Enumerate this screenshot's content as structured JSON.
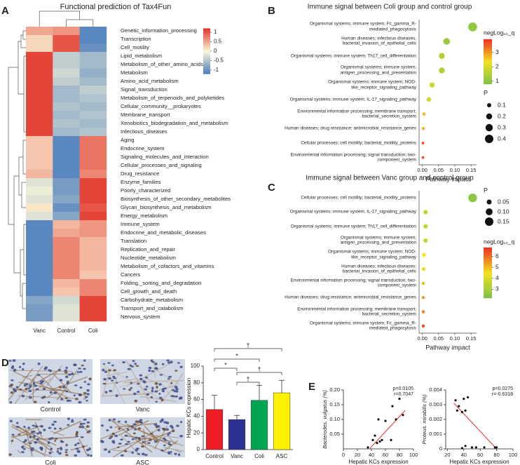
{
  "micrographs": {
    "panel": "D",
    "labels": [
      "Control",
      "Vanc",
      "Coli",
      "ASC"
    ]
  },
  "chart_data": [
    {
      "type": "heatmap",
      "panel": "A",
      "title": "Functional prediction of Tax4Fun",
      "rows": [
        "Genetic_information_processing",
        "Transcription",
        "Cell_motility",
        "Lipid_metabolism",
        "Metabolism_of_other_amino_acids",
        "Metabolism",
        "Amino_acid_metabolism",
        "Signal_transduction",
        "Metabolism_of_terpenoids_and_polyketides",
        "Cellular_community__prokaryotes",
        "Membrane_transport",
        "Xenobiotics_biodegradation_and_metabolism",
        "Infectious_diseases",
        "Aging",
        "Endocrine_system",
        "Signaling_molecules_and_interaction",
        "Cellular_processes_and_signaling",
        "Drug_resistance",
        "Enzyme_families",
        "Poorly_characterized",
        "Biosynthesis_of_other_secondary_metabolites",
        "Glycan_biosynthesis_and_metabolism",
        "Energy_metabolism",
        "Immune_system",
        "Endocrine_and_metabolic_diseases",
        "Translation",
        "Replication_and_repair",
        "Nucleotide_metabolism",
        "Metabolism_of_cofactors_and_vitamins",
        "Cancers",
        "Folding,_sorting_and_degradation",
        "Cell_growth_and_death",
        "Carbohydrate_metabolism",
        "Transport_and_catabolism",
        "Nervous_system"
      ],
      "series": [
        {
          "name": "Vanc",
          "values": [
            0.5,
            0.2,
            0.2,
            1.1,
            1.1,
            1.1,
            1.1,
            1.1,
            1.1,
            1.1,
            1.1,
            1.1,
            1.1,
            0.3,
            0.3,
            0.3,
            0.3,
            0.4,
            -0.2,
            -0.1,
            -0.2,
            0.1,
            -0.2,
            -1.1,
            -1.1,
            -1.1,
            -1.1,
            -1.1,
            -1.1,
            -1.1,
            -1.1,
            -1.1,
            -0.8,
            -0.9,
            -0.9
          ]
        },
        {
          "name": "Control",
          "values": [
            0.6,
            1.0,
            1.0,
            -0.4,
            -0.4,
            -0.3,
            -0.4,
            -0.6,
            -0.6,
            -0.5,
            -0.6,
            -0.5,
            -0.6,
            -1.1,
            -1.1,
            -1.1,
            -1.1,
            -1.1,
            -0.9,
            -0.9,
            -0.8,
            -1.0,
            -0.8,
            0.4,
            0.5,
            0.7,
            0.7,
            0.7,
            0.7,
            0.7,
            0.4,
            0.3,
            -0.3,
            -0.2,
            -0.2
          ]
        },
        {
          "name": "Coli",
          "values": [
            -1.1,
            -1.1,
            -1.0,
            -0.6,
            -0.6,
            -0.7,
            -0.6,
            -0.4,
            -0.5,
            -0.6,
            -0.5,
            -0.6,
            -0.5,
            0.8,
            0.8,
            0.8,
            0.8,
            0.7,
            1.1,
            1.1,
            1.1,
            1.0,
            1.1,
            0.6,
            0.6,
            0.4,
            0.4,
            0.4,
            0.4,
            0.3,
            0.7,
            0.7,
            1.1,
            1.1,
            1.1
          ]
        }
      ],
      "zlim": [
        -1.2,
        1.2
      ],
      "colorbar_ticks": [
        1,
        0.5,
        0,
        -0.5,
        -1
      ],
      "colors": [
        "#4a7dbd",
        "#fbf7d8",
        "#e3342b"
      ]
    },
    {
      "type": "dotplot",
      "panel": "B",
      "title": "Immune signal between Coli group and control group",
      "categories": [
        "Organismal systems; immune system; Fc_gamma_R-mediated_phagocytosis",
        "Human diseases; infectious diseases; bacterial_invasion_of_epithelial_cells",
        "Organismal systems; immune system; Th17_cell_differentiation",
        "Organismal systems; immune system; antigen_processing_and_presentation",
        "Organismal systems; immune system; NOD-like_receptor_signaling_pathway",
        "Organismal systems; immune system; IL-17_signaling_pathway",
        "Environmental information processing; membrane transport; bacterial_secretion_system",
        "Human diseases; drug resistance; antimicrobial_resistance_genes",
        "Cellular processes; cell motility; bacterial_motility_proteins",
        "Environmental information processing; signal transduction; two-component_system"
      ],
      "values": [
        0.155,
        0.075,
        0.06,
        0.06,
        0.03,
        0.02,
        0.005,
        0.003,
        0.002,
        0.002
      ],
      "size_values": [
        0.45,
        0.25,
        0.2,
        0.2,
        0.15,
        0.12,
        0.06,
        0.05,
        0.04,
        0.04
      ],
      "color_values": [
        1.1,
        1.2,
        1.5,
        1.5,
        1.8,
        1.9,
        2.7,
        2.8,
        3.6,
        3.7
      ],
      "xlim": [
        -0.01,
        0.167
      ],
      "xticks": [
        {
          "value": 0,
          "label": "0.00"
        },
        0.05,
        {
          "value": 0.1,
          "label": "0.10"
        },
        0.15
      ],
      "xlabel": "Pathway impact",
      "size_legend": {
        "title": "P",
        "values": [
          0.1,
          0.2,
          0.3,
          0.4
        ]
      },
      "color_legend": {
        "title": "negLog₁₀_q",
        "ticks": [
          1,
          2,
          3
        ],
        "range": [
          0.8,
          3.9
        ],
        "colors": [
          "#7dc24a",
          "#f2e21f",
          "#ee3024"
        ]
      }
    },
    {
      "type": "dotplot",
      "panel": "C",
      "title": "Immune signal between Vanc group and control group",
      "categories": [
        "Cellular processes; cell motility; bacterial_motility_proteins",
        "Organismal systems; immune system; IL-17_signaling_pathway",
        "Organismal systems; immune system; Th17_cell_differentiation",
        "Organismal systems; immune system; antigen_processing_and_presentation",
        "Organismal systems; immune system; NOD-like_receptor_signaling_pathway",
        "Human diseases; infectious diseases; bacterial_invasion_of_epithelial_cells",
        "Environmental information processing; signal transduction; two-component_system",
        "Human diseases; drug resistance; antimicrobial_resistance_genes",
        "Environmental information processing; membrane transport; bacterial_secretion_system",
        "Organismal systems; immune system; Fc_gamma_R-mediated_phagocytosis"
      ],
      "values": [
        0.155,
        0.01,
        0.01,
        0.01,
        0.005,
        0.004,
        0.003,
        0.003,
        0.003,
        0.003
      ],
      "size_values": [
        0.16,
        0.04,
        0.04,
        0.04,
        0.03,
        0.03,
        0.02,
        0.02,
        0.02,
        0.02
      ],
      "color_values": [
        2.5,
        3.6,
        3.6,
        3.6,
        4.5,
        4.6,
        5.0,
        5.5,
        5.8,
        6.4
      ],
      "xlim": [
        -0.01,
        0.167
      ],
      "xticks": [
        {
          "value": 0,
          "label": "0.00"
        },
        0.05,
        {
          "value": 0.1,
          "label": "0.10"
        },
        0.15
      ],
      "xlabel": "Pathway impact",
      "size_legend": {
        "title": "P",
        "values": [
          0.05,
          {
            "value": 0.1,
            "label": "0.10"
          },
          0.15
        ]
      },
      "color_legend": {
        "title": "negLog₁₀_q",
        "ticks": [
          3,
          4,
          5,
          6
        ],
        "range": [
          2.2,
          6.8
        ],
        "colors": [
          "#7dc24a",
          "#f2e21f",
          "#ee3024"
        ]
      }
    },
    {
      "type": "bar",
      "categories": [
        "Control",
        "Vanc",
        "Coli",
        "ASC"
      ],
      "values": [
        48,
        36,
        59,
        68
      ],
      "errors": [
        17,
        5,
        18,
        15
      ],
      "colors": [
        "#ee1c24",
        "#2e3192",
        "#00a651",
        "#fff200"
      ],
      "ylim": [
        0,
        100
      ],
      "yticks": [
        0,
        20,
        40,
        60,
        80,
        100
      ],
      "ylabel": "Hepatic KCs expression",
      "significance": [
        {
          "pair": [
            "Control",
            "ASC"
          ],
          "label": "†"
        },
        {
          "pair": [
            "Control",
            "Coli"
          ],
          "label": "*"
        },
        {
          "pair": [
            "Control",
            "Vanc"
          ],
          "label": "*"
        },
        {
          "pair": [
            "Vanc",
            "ASC"
          ],
          "label": "†"
        },
        {
          "pair": [
            "Vanc",
            "Coli"
          ],
          "label": "†"
        }
      ]
    },
    {
      "type": "scatter",
      "panel": "E",
      "x": [
        35,
        42,
        45,
        48,
        52,
        55,
        50,
        60,
        68,
        70,
        75,
        80,
        85
      ],
      "y": [
        0.005,
        0.03,
        0.045,
        0.02,
        0.025,
        0.03,
        0.1,
        0.095,
        0.03,
        0.145,
        0.1,
        0.17,
        0.115
      ],
      "fit": {
        "x": [
          38,
          88
        ],
        "y": [
          0.002,
          0.13
        ]
      },
      "color": "#111111",
      "line_color": "#e8302a",
      "xlim": [
        0,
        100
      ],
      "xticks": [
        0,
        20,
        40,
        60,
        80,
        100
      ],
      "ylim": [
        0,
        0.2
      ],
      "yticks": [
        0.05,
        {
          "value": 0.1,
          "label": "0.10"
        },
        0.15,
        {
          "value": 0.2,
          "label": "0.20"
        }
      ],
      "xlabel": "Hepatic KCs expression",
      "ylabel": "Bacterodes. vulgatus (%)",
      "annotations": [
        "p=0.0105",
        "r=0.7047"
      ]
    },
    {
      "type": "scatter",
      "x": [
        30,
        32,
        34,
        38,
        40,
        42,
        45,
        42,
        38,
        50,
        55,
        65,
        78,
        80
      ],
      "y": [
        0.0033,
        0.0026,
        0.0029,
        0.0025,
        0.0034,
        0.0026,
        0.0035,
        0.0002,
        5e-05,
        0.0001,
        0.0001,
        0.0001,
        0.0001,
        0.0001
      ],
      "fit": {
        "x": [
          28,
          80
        ],
        "y": [
          0.0031,
          0
        ]
      },
      "color": "#111111",
      "line_color": "#e8302a",
      "xlim": [
        18,
        100
      ],
      "xticks": [
        20,
        40,
        60,
        80,
        100
      ],
      "ylim": [
        0,
        0.004
      ],
      "yticks": [
        0,
        0.001,
        0.002,
        0.003,
        0.004
      ],
      "xlabel": "Hepatic KCs expression",
      "ylabel": "Proteus. mirabilis (%)",
      "annotations": [
        "p=0.0275",
        "r=-0.6318"
      ]
    }
  ]
}
